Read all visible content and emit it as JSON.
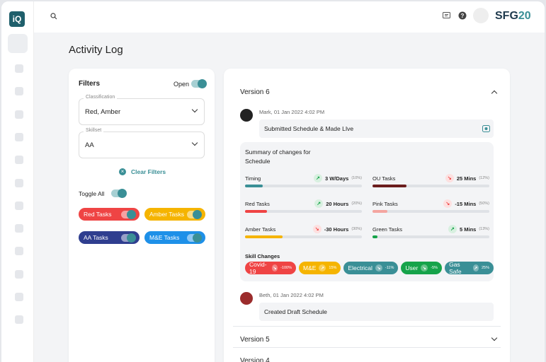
{
  "header": {
    "brand": "SFG",
    "brand_accent": "20",
    "logo": "iQ"
  },
  "page": {
    "title": "Activity Log"
  },
  "filters": {
    "title": "Filters",
    "open_label": "Open",
    "fields": [
      {
        "label": "Classification",
        "value": "Red, Amber"
      },
      {
        "label": "Skillset",
        "value": "AA"
      }
    ],
    "clear_label": "Clear Filters",
    "toggle_all_label": "Toggle All",
    "chips": [
      {
        "label": "Red Tasks",
        "color": "#ef4444"
      },
      {
        "label": "Amber Tasks",
        "color": "#f5b400"
      },
      {
        "label": "AA Tasks",
        "color": "#2f3e8f"
      },
      {
        "label": "M&E Tasks",
        "color": "#1e90e8"
      }
    ]
  },
  "activity": {
    "versions": [
      {
        "title": "Version 6",
        "expanded": true
      },
      {
        "title": "Version 5",
        "expanded": false
      },
      {
        "title": "Version 4",
        "expanded": false
      }
    ],
    "entries": [
      {
        "author": "Mark, 01 Jan 2022 4:02 PM",
        "message": "Submitted Schedule & Made LIve"
      },
      {
        "author": "Beth, 01 Jan 2022 4:02 PM",
        "message": "Created Draft Schedule"
      }
    ],
    "summary": {
      "title": "Summary of changes for Schedule",
      "metrics": [
        {
          "label": "Timing",
          "value": "3 W/Days",
          "pct": "(10%)",
          "trend": "up",
          "progress": 15,
          "color": "#3a8f96"
        },
        {
          "label": "OU Tasks",
          "value": "25 Mins",
          "pct": "(12%)",
          "trend": "down",
          "progress": 29,
          "color": "#6b1d1d"
        },
        {
          "label": "Red Tasks",
          "value": "20 Hours",
          "pct": "(20%)",
          "trend": "up",
          "progress": 19,
          "color": "#ef4444"
        },
        {
          "label": "Pink Tasks",
          "value": "-15 Mins",
          "pct": "(50%)",
          "trend": "down",
          "progress": 13,
          "color": "#f4a5a0"
        },
        {
          "label": "Amber Tasks",
          "value": "-30 Hours",
          "pct": "(30%)",
          "trend": "down",
          "progress": 32,
          "color": "#f5b400"
        },
        {
          "label": "Green Tasks",
          "value": "5 Mins",
          "pct": "(13%)",
          "trend": "up",
          "progress": 4,
          "color": "#16a34a"
        }
      ],
      "skills_label": "Skill Changes",
      "skills": [
        {
          "label": "Covid-19",
          "change": "-100%",
          "trend": "down",
          "color": "#ef4444"
        },
        {
          "label": "M&E",
          "change": "15%",
          "trend": "up",
          "color": "#f5b400"
        },
        {
          "label": "Electrical",
          "change": "-11%",
          "trend": "down",
          "color": "#3a8f96"
        },
        {
          "label": "User",
          "change": "-5%",
          "trend": "down",
          "color": "#16a34a"
        },
        {
          "label": "Gas Safe",
          "change": "25%",
          "trend": "up",
          "color": "#3a8f96"
        }
      ]
    }
  }
}
